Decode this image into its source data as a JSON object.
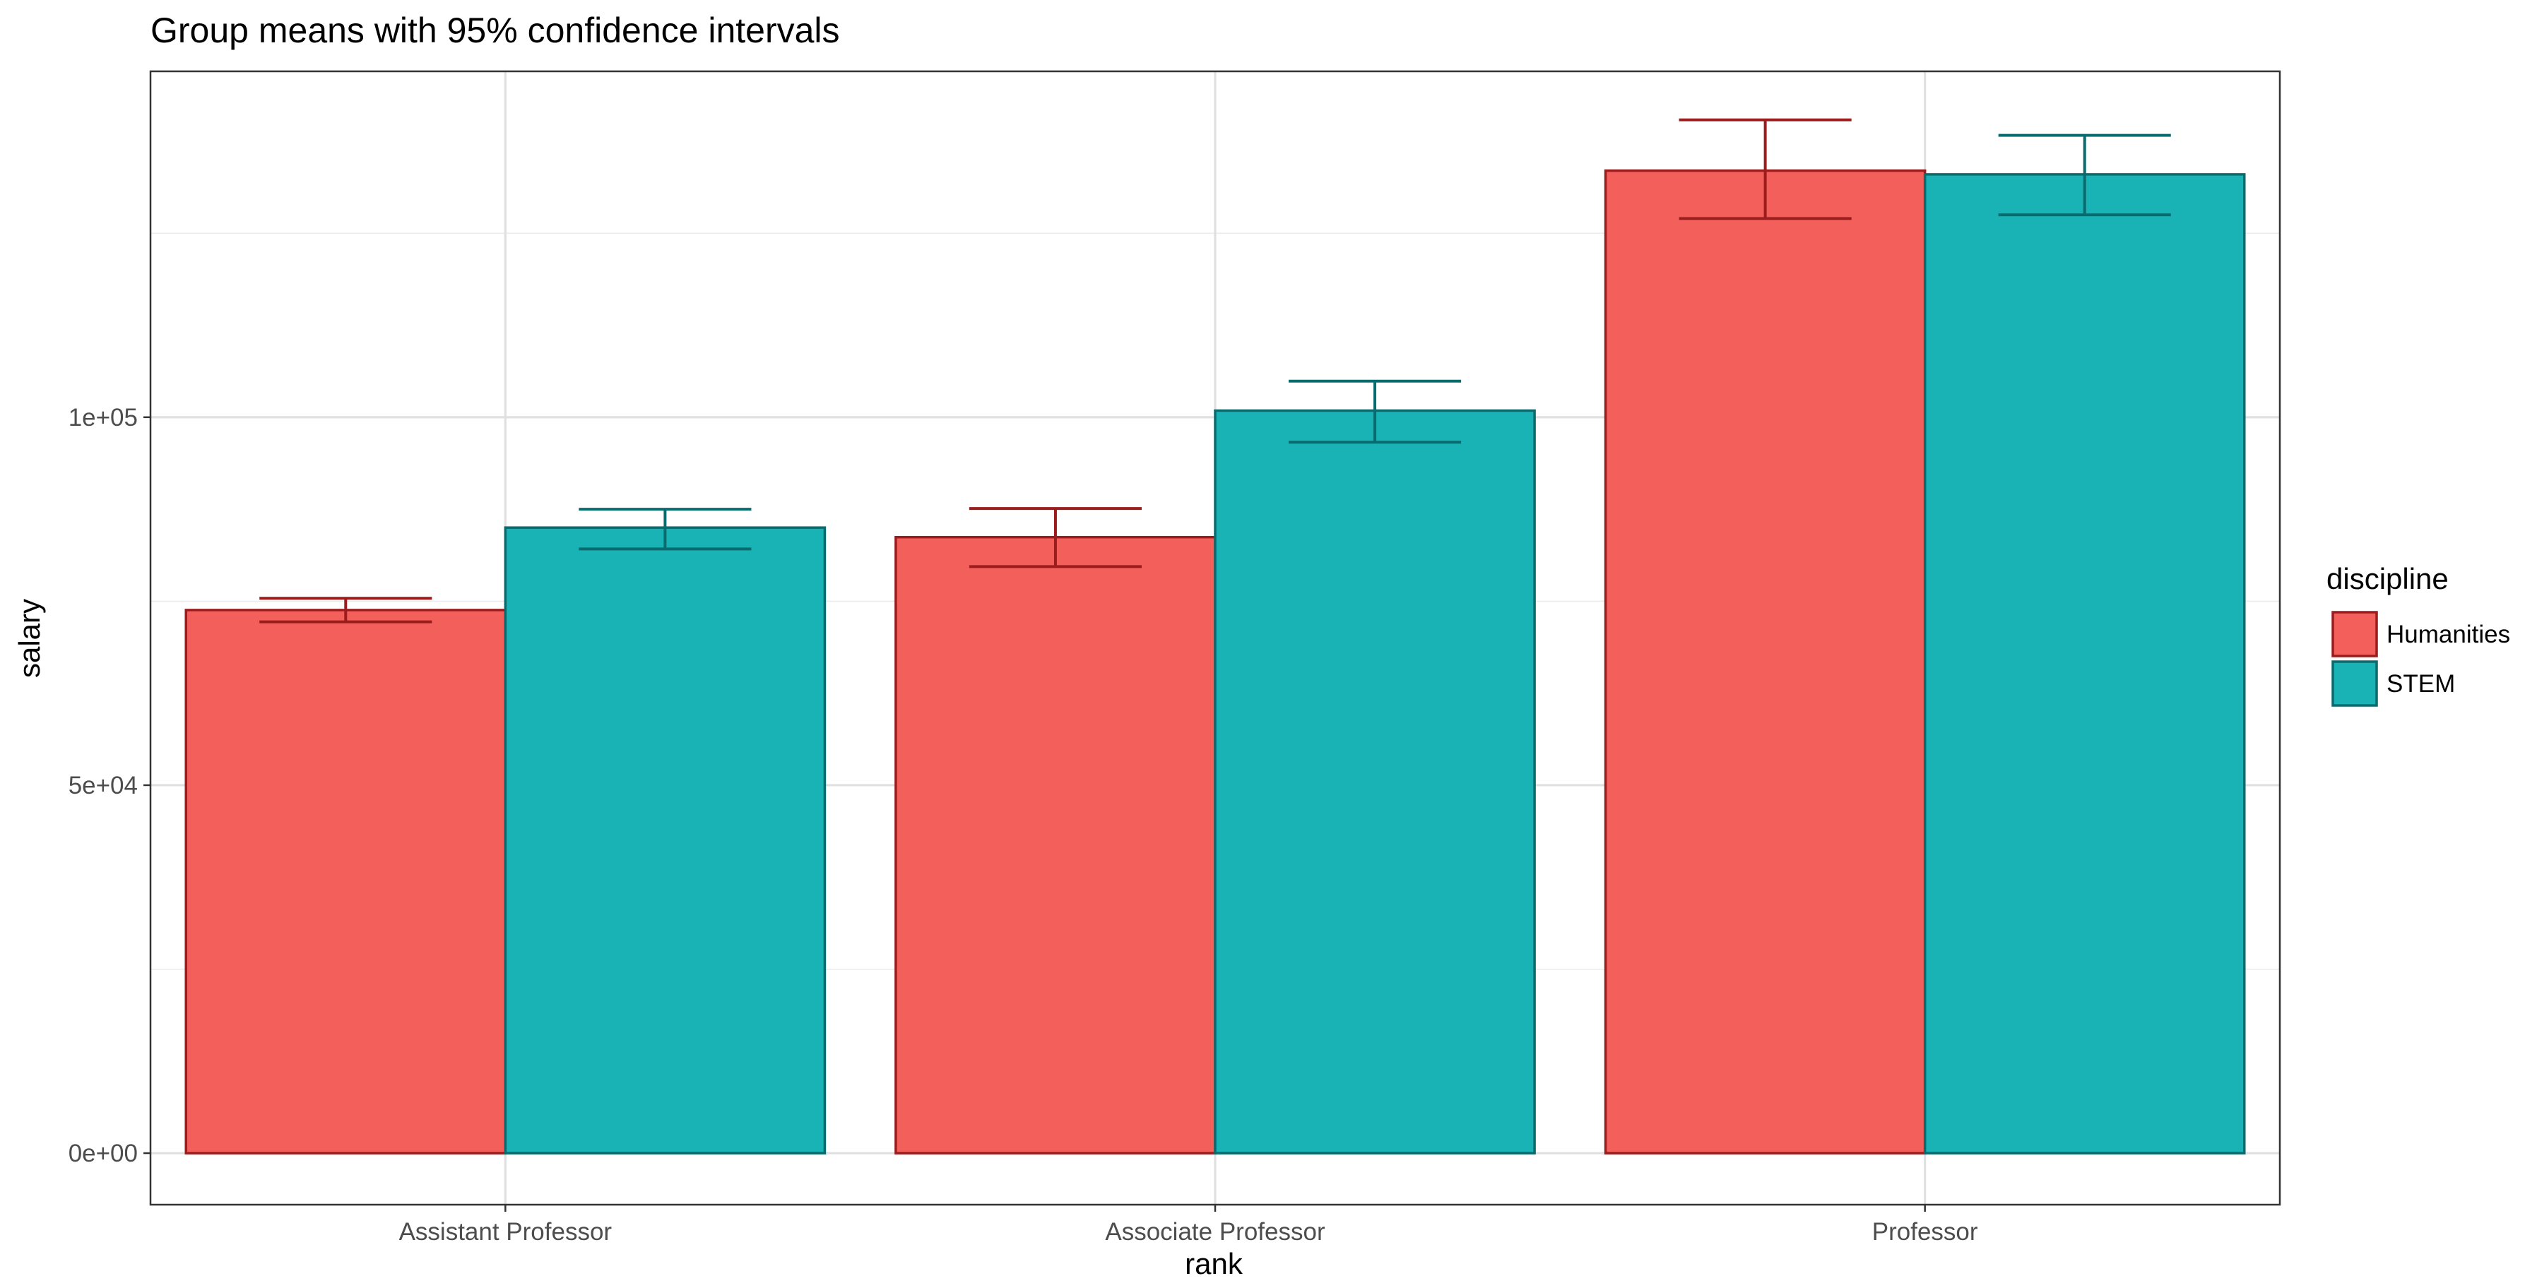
{
  "chart_data": {
    "type": "bar",
    "title": "Group means with 95% confidence intervals",
    "xlabel": "rank",
    "ylabel": "salary",
    "categories": [
      "Assistant Professor",
      "Associate Professor",
      "Professor"
    ],
    "ylim": [
      -7000,
      147000
    ],
    "yticks": [
      0,
      50000,
      100000
    ],
    "ytick_labels": [
      "0e+00",
      "5e+04",
      "1e+05"
    ],
    "yminor": [
      25000,
      75000,
      125000
    ],
    "grid": true,
    "legend": {
      "title": "discipline",
      "position": "right"
    },
    "series": [
      {
        "name": "Humanities",
        "fill": "#f3605b",
        "stroke": "#9b1c1c",
        "values": [
          73800,
          83700,
          133500
        ],
        "ci_low": [
          72200,
          79700,
          127000
        ],
        "ci_high": [
          75400,
          87600,
          140400
        ]
      },
      {
        "name": "STEM",
        "fill": "#19b3b5",
        "stroke": "#0a6b6e",
        "values": [
          85000,
          100900,
          133000
        ],
        "ci_low": [
          82100,
          96600,
          127500
        ],
        "ci_high": [
          87500,
          104900,
          138300
        ]
      }
    ]
  }
}
